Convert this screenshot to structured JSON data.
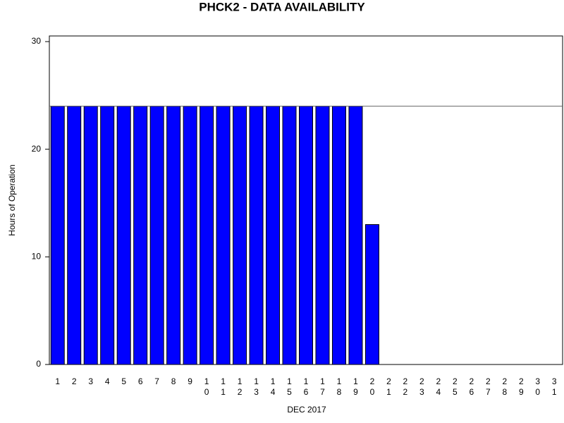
{
  "chart_data": {
    "type": "bar",
    "title": "PHCK2 - DATA AVAILABILITY",
    "x_label": "DEC 2017",
    "y_label": "Hours of Operation",
    "categories": [
      "1",
      "2",
      "3",
      "4",
      "5",
      "6",
      "7",
      "8",
      "9",
      "10",
      "11",
      "12",
      "13",
      "14",
      "15",
      "16",
      "17",
      "18",
      "19",
      "20",
      "21",
      "22",
      "23",
      "24",
      "25",
      "26",
      "27",
      "28",
      "29",
      "30",
      "31"
    ],
    "values": [
      24,
      24,
      24,
      24,
      24,
      24,
      24,
      24,
      24,
      24,
      24,
      24,
      24,
      24,
      24,
      24,
      24,
      24,
      24,
      13,
      0,
      0,
      0,
      0,
      0,
      0,
      0,
      0,
      0,
      0,
      0
    ],
    "color": "#0000ff",
    "reference_line": 24,
    "ylim": [
      0,
      30
    ],
    "yticks": [
      0,
      10,
      20,
      30
    ],
    "grid": false
  }
}
